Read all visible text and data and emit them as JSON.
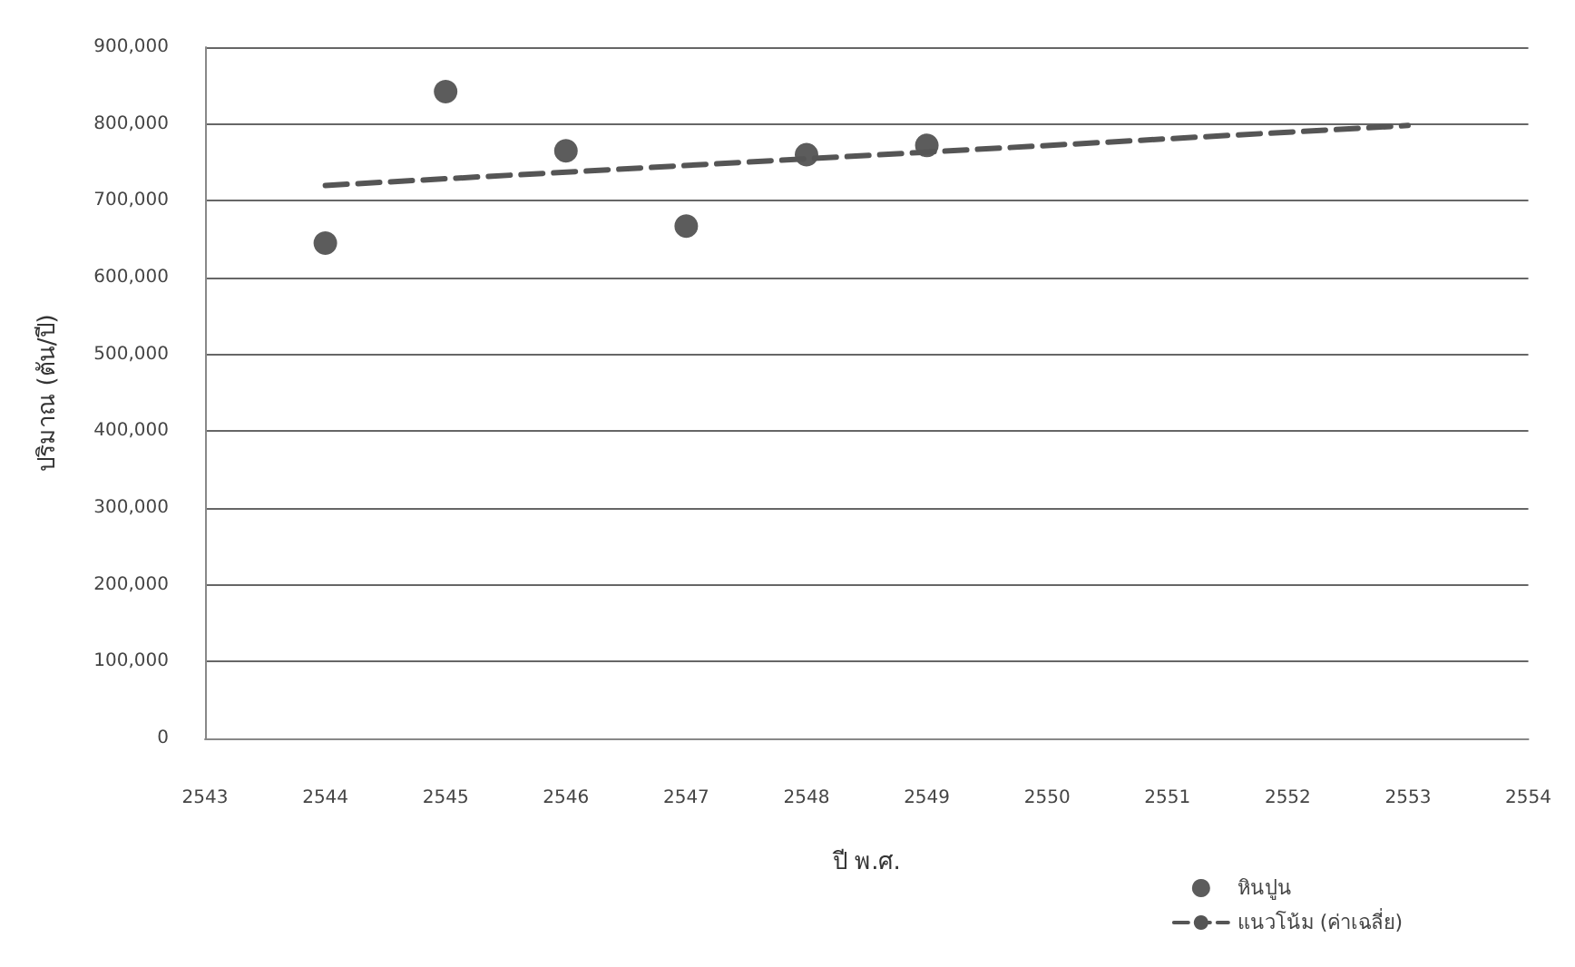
{
  "chart_data": {
    "type": "scatter",
    "xlabel": "ปี พ.ศ.",
    "ylabel": "ปริมาณ (ตัน/ปี)",
    "x": [
      2544,
      2545,
      2546,
      2547,
      2548,
      2549
    ],
    "series": [
      {
        "name": "หินปูน",
        "color": "#333333",
        "values": [
          645000,
          842000,
          765000,
          667000,
          760000,
          772000
        ]
      },
      {
        "name": "แนวโน้ม (ค่าเฉลี่ย)",
        "type": "line",
        "color": "#555555",
        "x": [
          2544,
          2553
        ],
        "values": [
          720000,
          798000
        ],
        "line_style": "dashed",
        "marker": "none"
      }
    ],
    "xlim": [
      2543,
      2554
    ],
    "xticks": [
      2543,
      2544,
      2545,
      2546,
      2547,
      2548,
      2549,
      2550,
      2551,
      2552,
      2553,
      2554
    ],
    "ylim": [
      0,
      900000
    ],
    "yticks": [
      0,
      {
        "value": 100000,
        "label": "100,000"
      },
      {
        "value": 200000,
        "label": "200,000"
      },
      {
        "value": 300000,
        "label": "300,000"
      },
      {
        "value": 400000,
        "label": "400,000"
      },
      {
        "value": 500000,
        "label": "500,000"
      },
      {
        "value": 600000,
        "label": "600,000"
      },
      {
        "value": 700000,
        "label": "700,000"
      },
      {
        "value": 800000,
        "label": "800,000"
      },
      {
        "value": 900000,
        "label": "900,000"
      }
    ],
    "grid": "y",
    "legend": "bottom right",
    "marker": "circle"
  }
}
